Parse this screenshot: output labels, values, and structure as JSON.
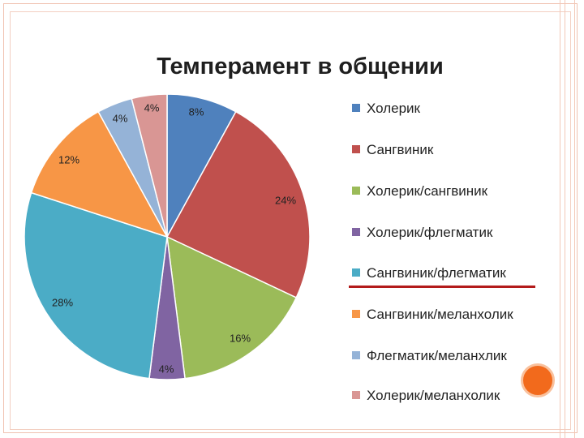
{
  "chart_data": {
    "type": "pie",
    "title": "Темперамент в общении",
    "categories": [
      "Холерик",
      "Сангвиник",
      "Холерик/сангвиник",
      "Холерик/флегматик",
      "Сангвиник/флегматик",
      "Сангвиник/меланхолик",
      "Флегматик/меланхлик",
      "Холерик/меланхолик"
    ],
    "values": [
      8,
      24,
      16,
      4,
      28,
      12,
      4,
      4
    ],
    "data_labels": [
      "8%",
      "24%",
      "16%",
      "4%",
      "28%",
      "12%",
      "4%",
      "4%"
    ],
    "colors": [
      "#4f81bd",
      "#c0504d",
      "#9bbb59",
      "#8064a2",
      "#4bacc6",
      "#f79646",
      "#95b3d7",
      "#d99694"
    ],
    "legend_position": "right"
  }
}
